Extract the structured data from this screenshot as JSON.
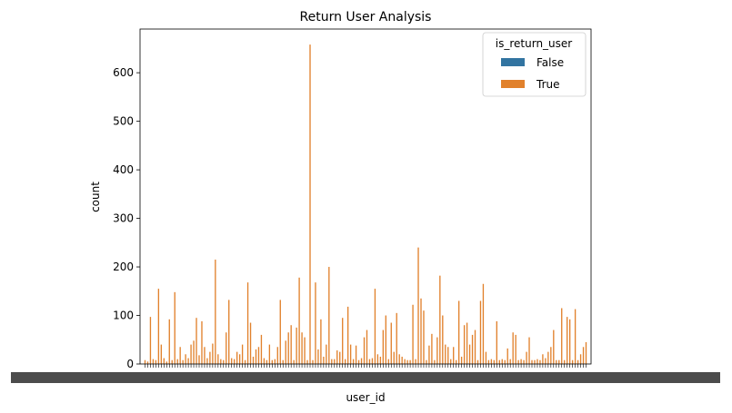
{
  "chart_data": {
    "type": "bar",
    "title": "Return User Analysis",
    "xlabel": "user_id",
    "ylabel": "count",
    "ylim": [
      0,
      690
    ],
    "yticks": [
      0,
      100,
      200,
      300,
      400,
      500,
      600
    ],
    "legend": {
      "title": "is_return_user",
      "placement": "top-right",
      "entries": [
        {
          "name": "False",
          "color": "#3274a1"
        },
        {
          "name": "True",
          "color": "#e1812c"
        }
      ]
    },
    "categories_note": "x tick labels are overlapping and illegible in the original",
    "series": [
      {
        "name": "True",
        "color": "#e1812c",
        "values": [
          8,
          5,
          97,
          10,
          8,
          155,
          40,
          12,
          5,
          92,
          8,
          148,
          10,
          35,
          8,
          20,
          12,
          40,
          48,
          95,
          18,
          88,
          35,
          12,
          25,
          42,
          215,
          20,
          10,
          8,
          65,
          132,
          12,
          10,
          25,
          20,
          40,
          8,
          168,
          85,
          15,
          30,
          35,
          60,
          12,
          8,
          40,
          8,
          10,
          35,
          132,
          8,
          48,
          65,
          80,
          8,
          75,
          178,
          65,
          55,
          8,
          658,
          8,
          168,
          30,
          92,
          15,
          40,
          200,
          10,
          10,
          28,
          25,
          95,
          10,
          118,
          40,
          10,
          38,
          8,
          12,
          55,
          70,
          10,
          12,
          155,
          20,
          15,
          70,
          100,
          10,
          85,
          25,
          105,
          20,
          15,
          10,
          8,
          8,
          122,
          10,
          240,
          135,
          110,
          8,
          38,
          62,
          8,
          55,
          182,
          100,
          40,
          35,
          10,
          35,
          8,
          130,
          15,
          80,
          85,
          40,
          60,
          70,
          8,
          130,
          165,
          25,
          8,
          10,
          8,
          88,
          8,
          10,
          8,
          32,
          10,
          65,
          60,
          8,
          10,
          8,
          25,
          55,
          8,
          8,
          10,
          8,
          20,
          12,
          25,
          35,
          70,
          8,
          8,
          115,
          8,
          97,
          92,
          8,
          113,
          8,
          20,
          35,
          45
        ]
      },
      {
        "name": "False",
        "color": "#3274a1",
        "values": []
      }
    ]
  }
}
